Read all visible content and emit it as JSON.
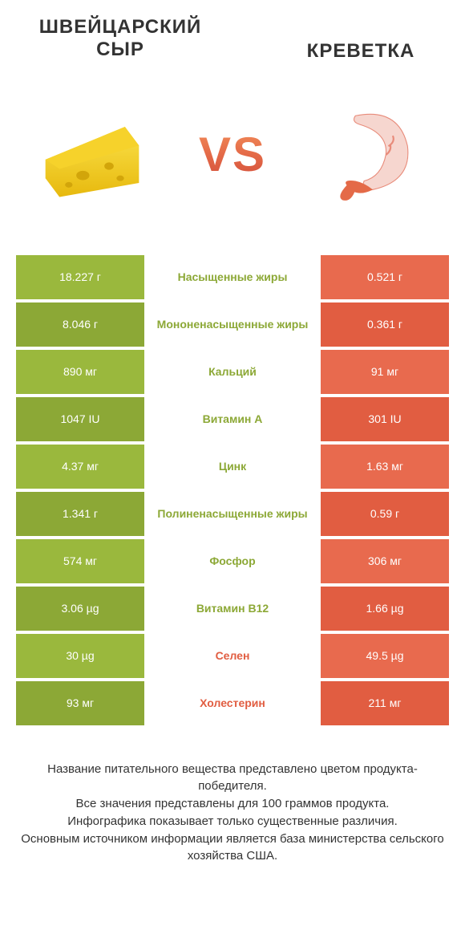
{
  "colors": {
    "green_a": "#9ab83d",
    "green_b": "#8ca836",
    "red_a": "#e86a4e",
    "red_b": "#e15d41",
    "green_text": "#8ca836",
    "red_text": "#e15d41",
    "text_dark": "#333333",
    "background": "#ffffff"
  },
  "header": {
    "left_title": "ШВЕЙЦАРСКИЙ СЫР",
    "right_title": "КРЕВЕТКА",
    "vs": "VS"
  },
  "table": {
    "rows": [
      {
        "nutrient": "Насыщенные жиры",
        "left": "18.227 г",
        "right": "0.521 г",
        "winner": "left"
      },
      {
        "nutrient": "Мононенасыщенные жиры",
        "left": "8.046 г",
        "right": "0.361 г",
        "winner": "left"
      },
      {
        "nutrient": "Кальций",
        "left": "890 мг",
        "right": "91 мг",
        "winner": "left"
      },
      {
        "nutrient": "Витамин A",
        "left": "1047 IU",
        "right": "301 IU",
        "winner": "left"
      },
      {
        "nutrient": "Цинк",
        "left": "4.37 мг",
        "right": "1.63 мг",
        "winner": "left"
      },
      {
        "nutrient": "Полиненасыщенные жиры",
        "left": "1.341 г",
        "right": "0.59 г",
        "winner": "left"
      },
      {
        "nutrient": "Фосфор",
        "left": "574 мг",
        "right": "306 мг",
        "winner": "left"
      },
      {
        "nutrient": "Витамин B12",
        "left": "3.06 µg",
        "right": "1.66 µg",
        "winner": "left"
      },
      {
        "nutrient": "Селен",
        "left": "30 µg",
        "right": "49.5 µg",
        "winner": "right"
      },
      {
        "nutrient": "Холестерин",
        "left": "93 мг",
        "right": "211 мг",
        "winner": "right"
      }
    ]
  },
  "footer": {
    "line1": "Название питательного вещества представлено цветом продукта-победителя.",
    "line2": "Все значения представлены для 100 граммов продукта.",
    "line3": "Инфографика показывает только существенные различия.",
    "line4": "Основным источником информации является база министерства сельского хозяйства США."
  }
}
